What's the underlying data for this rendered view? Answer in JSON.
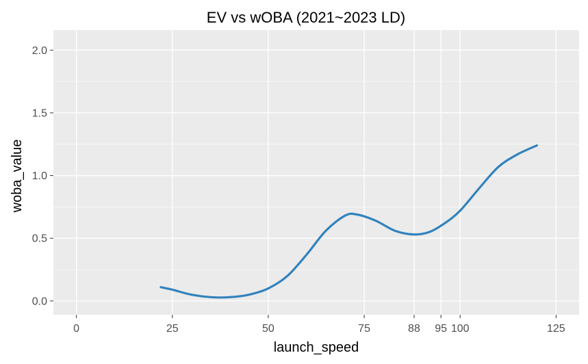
{
  "chart_data": {
    "type": "line",
    "title": "EV vs wOBA (2021~2023 LD)",
    "xlabel": "launch_speed",
    "ylabel": "woba_value",
    "xlim": [
      -6,
      131
    ],
    "ylim": [
      -0.11,
      2.16
    ],
    "x_ticks": [
      0,
      25,
      50,
      75,
      88,
      95,
      100,
      125
    ],
    "x_tick_labels": [
      "0",
      "25",
      "50",
      "75",
      "88",
      "95",
      "100",
      "125"
    ],
    "y_ticks": [
      0.0,
      0.5,
      1.0,
      1.5,
      2.0
    ],
    "y_tick_labels": [
      "0.0",
      "0.5",
      "1.0",
      "1.5",
      "2.0"
    ],
    "grid": true,
    "colors": {
      "panel": "#ebebeb",
      "grid": "#ffffff",
      "line": "#3182bd"
    },
    "series": [
      {
        "x": [
          22,
          25,
          30,
          35,
          40,
          45,
          50,
          55,
          60,
          65,
          70,
          73,
          78,
          83,
          88,
          92,
          96,
          100,
          105,
          110,
          115,
          120
        ],
        "y": [
          0.11,
          0.09,
          0.05,
          0.03,
          0.03,
          0.05,
          0.1,
          0.2,
          0.37,
          0.56,
          0.68,
          0.69,
          0.64,
          0.56,
          0.53,
          0.55,
          0.62,
          0.72,
          0.9,
          1.07,
          1.17,
          1.24
        ]
      }
    ]
  }
}
